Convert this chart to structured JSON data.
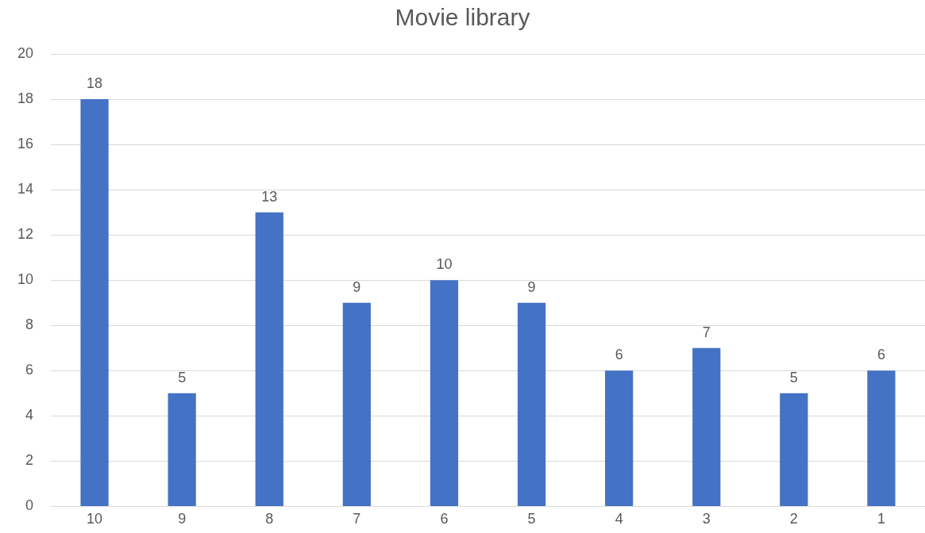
{
  "chart_data": {
    "type": "bar",
    "title": "Movie library",
    "categories": [
      "10",
      "9",
      "8",
      "7",
      "6",
      "5",
      "4",
      "3",
      "2",
      "1"
    ],
    "values": [
      18,
      5,
      13,
      9,
      10,
      9,
      6,
      7,
      5,
      6
    ],
    "color": "#4472c4",
    "ylim": [
      0,
      20
    ],
    "yticks": [
      0,
      2,
      4,
      6,
      8,
      10,
      12,
      14,
      16,
      18,
      20
    ],
    "grid": "y",
    "data_labels": true,
    "legend": false
  }
}
